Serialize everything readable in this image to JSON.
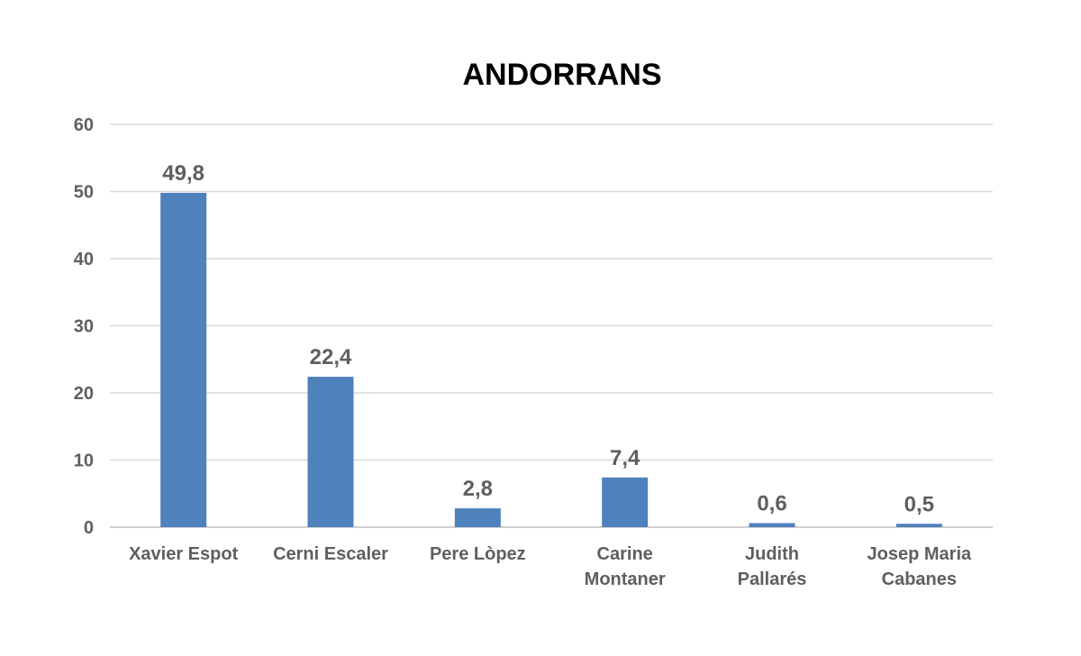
{
  "chart_data": {
    "type": "bar",
    "title": "ANDORRANS",
    "xlabel": "",
    "ylabel": "",
    "categories": [
      [
        "Xavier Espot"
      ],
      [
        "Cerni Escaler"
      ],
      [
        "Pere Lòpez"
      ],
      [
        "Carine",
        "Montaner"
      ],
      [
        "Judith",
        "Pallarés"
      ],
      [
        "Josep Maria",
        "Cabanes"
      ]
    ],
    "values": [
      49.8,
      22.4,
      2.8,
      7.4,
      0.6,
      0.5
    ],
    "data_labels": [
      "49,8",
      "22,4",
      "2,8",
      "7,4",
      "0,6",
      "0,5"
    ],
    "ylim": [
      0,
      60
    ],
    "yticks": [
      0,
      10,
      20,
      30,
      40,
      50,
      60
    ],
    "grid": true,
    "legend": "none",
    "bar_color": "#4f81bd"
  }
}
